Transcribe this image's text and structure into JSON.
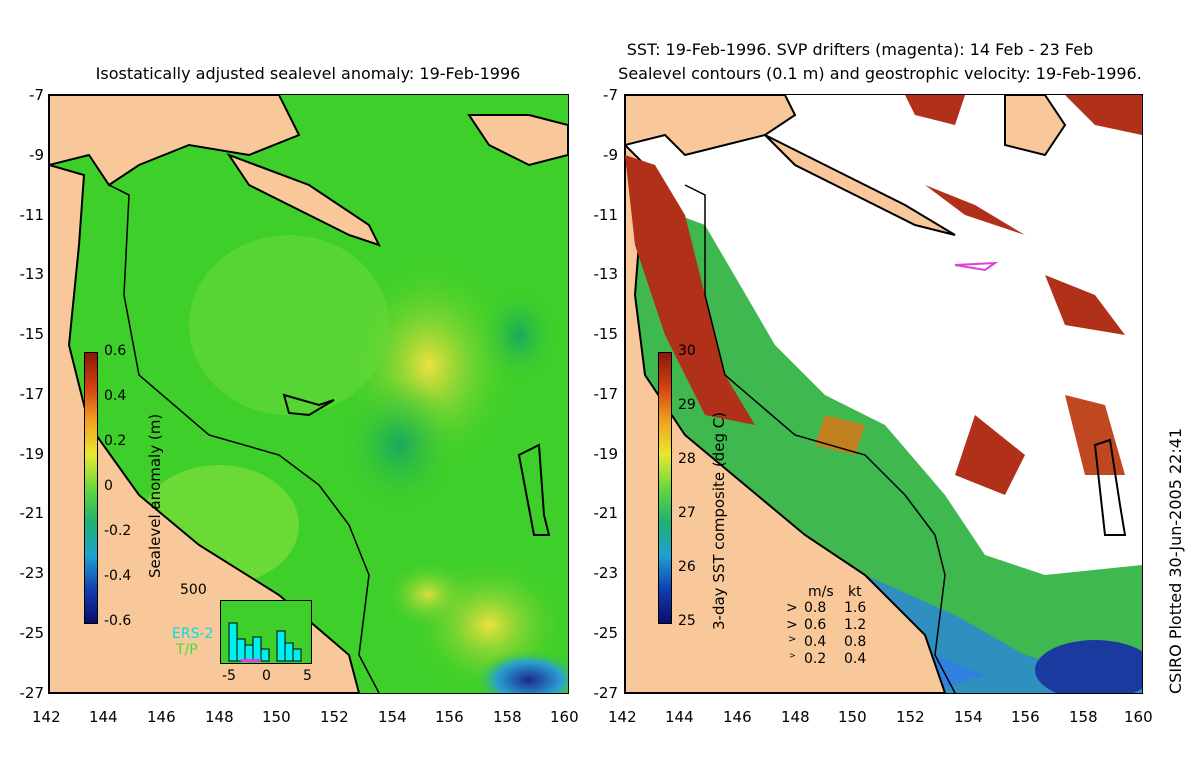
{
  "left_panel": {
    "title": "Isostatically adjusted sealevel anomaly: 19-Feb-1996",
    "colorbar_label": "Sealevel anomaly (m)",
    "colorbar_ticks": [
      "0.6",
      "0.4",
      "0.2",
      "0",
      "-0.2",
      "-0.4",
      "-0.6"
    ],
    "inset": {
      "ymax": "500",
      "ers_label": "ERS-2",
      "tp_label": "T/P",
      "x_ticks": [
        "-5",
        "0",
        "5"
      ]
    }
  },
  "right_panel": {
    "title_line1": "SST: 19-Feb-1996. SVP drifters (magenta): 14 Feb - 23 Feb",
    "title_line2": "Sealevel contours (0.1 m) and geostrophic velocity: 19-Feb-1996.",
    "colorbar_label": "3-day SST composite (deg C)",
    "colorbar_ticks": [
      "30",
      "29",
      "28",
      "27",
      "26",
      "25"
    ],
    "velocity_legend": {
      "header_ms": "m/s",
      "header_kt": "kt",
      "rows": [
        {
          "ms": "0.8",
          "kt": "1.6"
        },
        {
          "ms": "0.6",
          "kt": "1.2"
        },
        {
          "ms": "0.4",
          "kt": "0.8"
        },
        {
          "ms": "0.2",
          "kt": "0.4"
        }
      ]
    }
  },
  "axes": {
    "lat_ticks": [
      "-7",
      "-9",
      "-11",
      "-13",
      "-15",
      "-17",
      "-19",
      "-21",
      "-23",
      "-25",
      "-27"
    ],
    "lon_ticks": [
      "142",
      "144",
      "146",
      "148",
      "150",
      "152",
      "154",
      "156",
      "158",
      "160"
    ]
  },
  "side_label": "CSIRO Plotted 30-Jun-2005 22:41",
  "colors": {
    "land": "#f9c89a",
    "ocean_green": "#3fcf2a",
    "ocean_light": "#8fe03a",
    "ocean_yellow": "#e8e840",
    "sst_red": "#b0301a",
    "sst_blue": "#2080d0",
    "drifter": "#e040e0"
  }
}
